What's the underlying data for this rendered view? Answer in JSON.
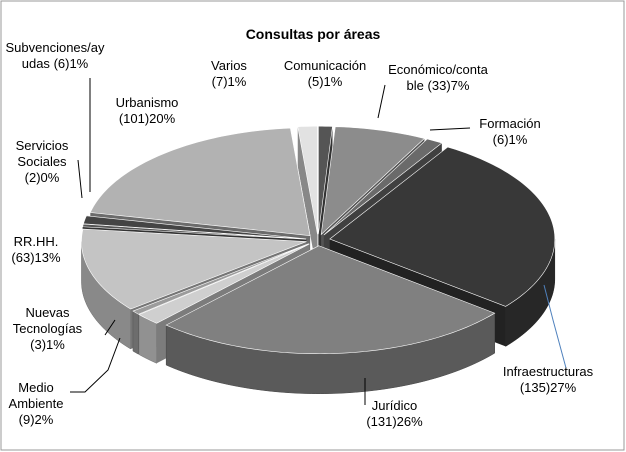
{
  "chart_data": {
    "type": "pie3d",
    "title": "Consultas por áreas",
    "categories": [
      "Comunicación",
      "Económico/contable",
      "Formación",
      "Infraestructuras",
      "Jurídico",
      "Medio Ambiente",
      "Nuevas Tecnologías",
      "RR.HH.",
      "Servicios Sociales",
      "Subvenciones/ayudas",
      "Urbanismo",
      "Varios"
    ],
    "values": [
      5,
      33,
      6,
      135,
      131,
      9,
      3,
      63,
      2,
      6,
      101,
      7
    ],
    "value_labels": [
      "(5)1%",
      "(33)7%",
      "(6)1%",
      "(135)27%",
      "(131)26%",
      "(9)2%",
      "(3)1%",
      "(63)13%",
      "(2)0%",
      "(6)1%",
      "(101)20%",
      "(7)1%"
    ],
    "colors": [
      "#555555",
      "#8c8c8c",
      "#6a6a6a",
      "#383838",
      "#808080",
      "#cfcfcf",
      "#9c9c9c",
      "#c4c4c4",
      "#555555",
      "#444444",
      "#b2b2b2",
      "#e2e2e2"
    ]
  }
}
